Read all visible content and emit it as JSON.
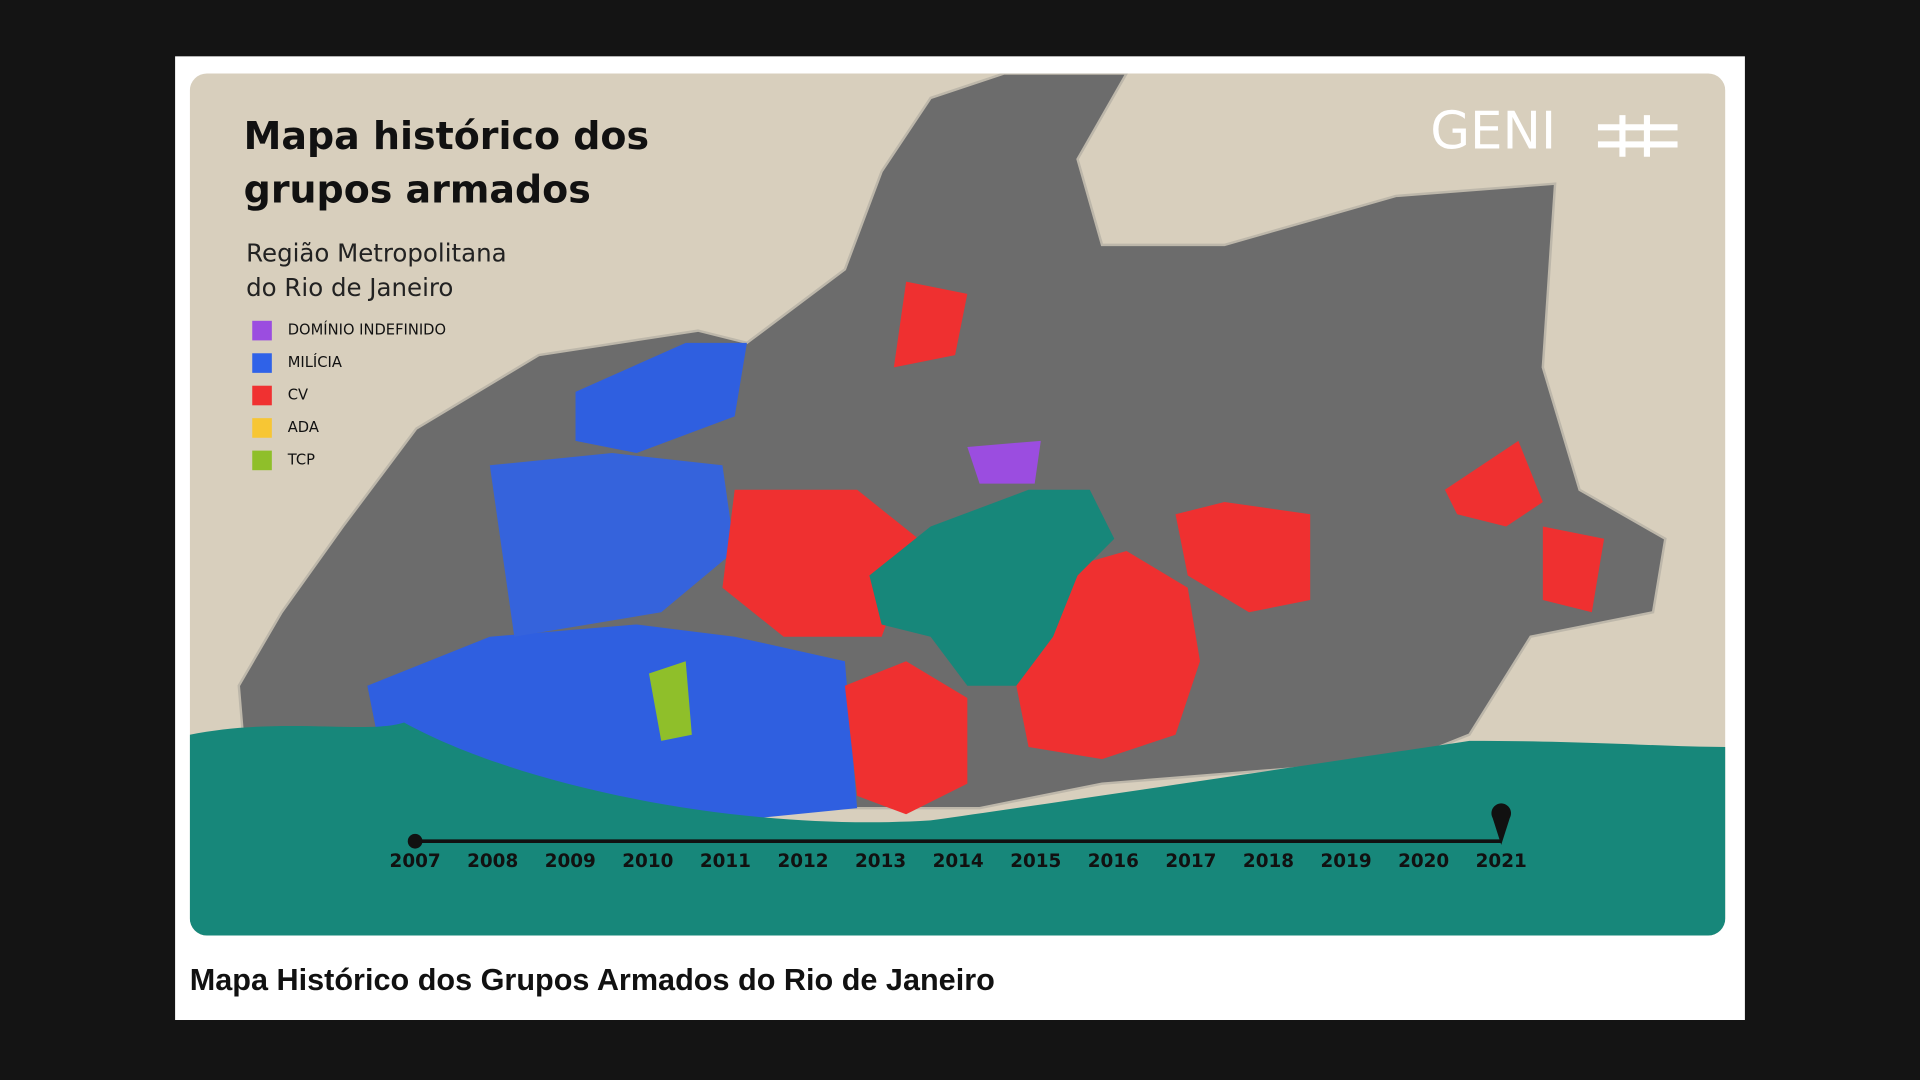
{
  "map": {
    "title": [
      "Mapa histórico dos",
      "grupos armados"
    ],
    "subtitle": [
      "Região Metropolitana",
      "do Rio de Janeiro"
    ],
    "legend": [
      {
        "label": "DOMÍNIO INDEFINIDO",
        "color": "#9b4de0"
      },
      {
        "label": "MILÍCIA",
        "color": "#2f62e8"
      },
      {
        "label": "CV",
        "color": "#f03131"
      },
      {
        "label": "ADA",
        "color": "#f7c634"
      },
      {
        "label": "TCP",
        "color": "#8fbf2a"
      }
    ],
    "logo": "GENI",
    "timeline": {
      "years": [
        "2007",
        "2008",
        "2009",
        "2010",
        "2011",
        "2012",
        "2013",
        "2014",
        "2015",
        "2016",
        "2017",
        "2018",
        "2019",
        "2020",
        "2021"
      ]
    }
  },
  "caption": "Mapa Histórico dos Grupos Armados do Rio de Janeiro"
}
